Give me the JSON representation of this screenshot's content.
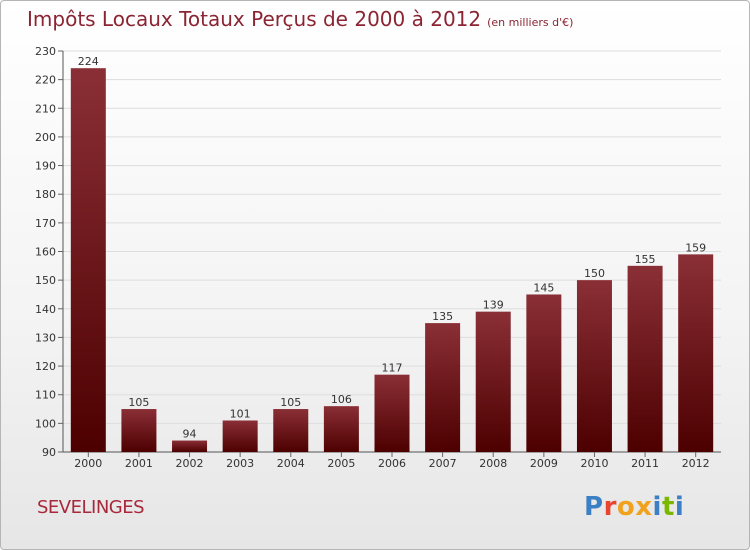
{
  "title": "Impôts Locaux Totaux Perçus de 2000 à 2012",
  "subtitle": "(en milliers d'€)",
  "commune": "SEVELINGES",
  "logo": {
    "text": "Proxiti",
    "colors": [
      "#3b7fc4",
      "#e8442e",
      "#f0a21e",
      "#f0a21e",
      "#3b7fc4",
      "#7ab800",
      "#3b7fc4"
    ]
  },
  "colors": {
    "bar_top": "#8a2f36",
    "bar_bottom": "#4d0000",
    "title": "#8b2433"
  },
  "chart_data": {
    "type": "bar",
    "categories": [
      "2000",
      "2001",
      "2002",
      "2003",
      "2004",
      "2005",
      "2006",
      "2007",
      "2008",
      "2009",
      "2010",
      "2011",
      "2012"
    ],
    "values": [
      224,
      105,
      94,
      101,
      105,
      106,
      117,
      135,
      139,
      145,
      150,
      155,
      159
    ],
    "title": "Impôts Locaux Totaux Perçus de 2000 à 2012",
    "xlabel": "",
    "ylabel": "",
    "ylim": [
      90,
      230
    ],
    "yticks": [
      90,
      100,
      110,
      120,
      130,
      140,
      150,
      160,
      170,
      180,
      190,
      200,
      210,
      220,
      230
    ],
    "grid": true,
    "legend": "none"
  }
}
